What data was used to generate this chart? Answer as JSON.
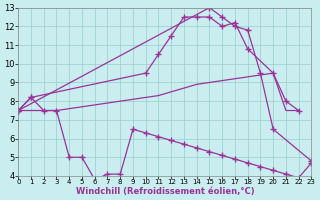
{
  "bg_color": "#caeef0",
  "grid_color": "#99cccc",
  "line_color": "#993399",
  "xlabel": "Windchill (Refroidissement éolien,°C)",
  "xlim": [
    0,
    23
  ],
  "ylim": [
    4,
    13
  ],
  "xticks": [
    0,
    1,
    2,
    3,
    4,
    5,
    6,
    7,
    8,
    9,
    10,
    11,
    12,
    13,
    14,
    15,
    16,
    17,
    18,
    19,
    20,
    21,
    22,
    23
  ],
  "yticks": [
    4,
    5,
    6,
    7,
    8,
    9,
    10,
    11,
    12,
    13
  ],
  "lineA_x": [
    0,
    15,
    16,
    17,
    18,
    19,
    20,
    23
  ],
  "lineA_y": [
    7.5,
    13.0,
    12.5,
    12.0,
    11.8,
    9.5,
    6.5,
    4.8
  ],
  "lineB_x": [
    0,
    1,
    10,
    11,
    12,
    13,
    14,
    15,
    16,
    17,
    18,
    20,
    21,
    22
  ],
  "lineB_y": [
    7.5,
    8.2,
    9.5,
    10.5,
    11.5,
    12.5,
    12.5,
    12.5,
    12.0,
    12.2,
    10.8,
    9.5,
    8.0,
    7.5
  ],
  "lineC_x": [
    0,
    1,
    2,
    3,
    4,
    5,
    6,
    7,
    8,
    9,
    10,
    11,
    12,
    13,
    14,
    15,
    16,
    17,
    18,
    19,
    20,
    21,
    22
  ],
  "lineC_y": [
    7.5,
    7.5,
    7.5,
    7.5,
    7.6,
    7.7,
    7.8,
    7.9,
    8.0,
    8.1,
    8.2,
    8.3,
    8.5,
    8.7,
    8.9,
    9.0,
    9.1,
    9.2,
    9.3,
    9.4,
    9.5,
    7.5,
    7.5
  ],
  "lineD_x": [
    0,
    1,
    2,
    3,
    4,
    5,
    6,
    7,
    8,
    9,
    10,
    11,
    12,
    13,
    14,
    15,
    16,
    17,
    18,
    19,
    20,
    21,
    22,
    23
  ],
  "lineD_y": [
    7.5,
    8.2,
    7.5,
    7.5,
    5.0,
    5.0,
    3.8,
    4.1,
    4.1,
    6.5,
    6.3,
    6.1,
    5.9,
    5.7,
    5.5,
    5.3,
    5.1,
    4.9,
    4.7,
    4.5,
    4.3,
    4.1,
    3.9,
    4.7
  ]
}
